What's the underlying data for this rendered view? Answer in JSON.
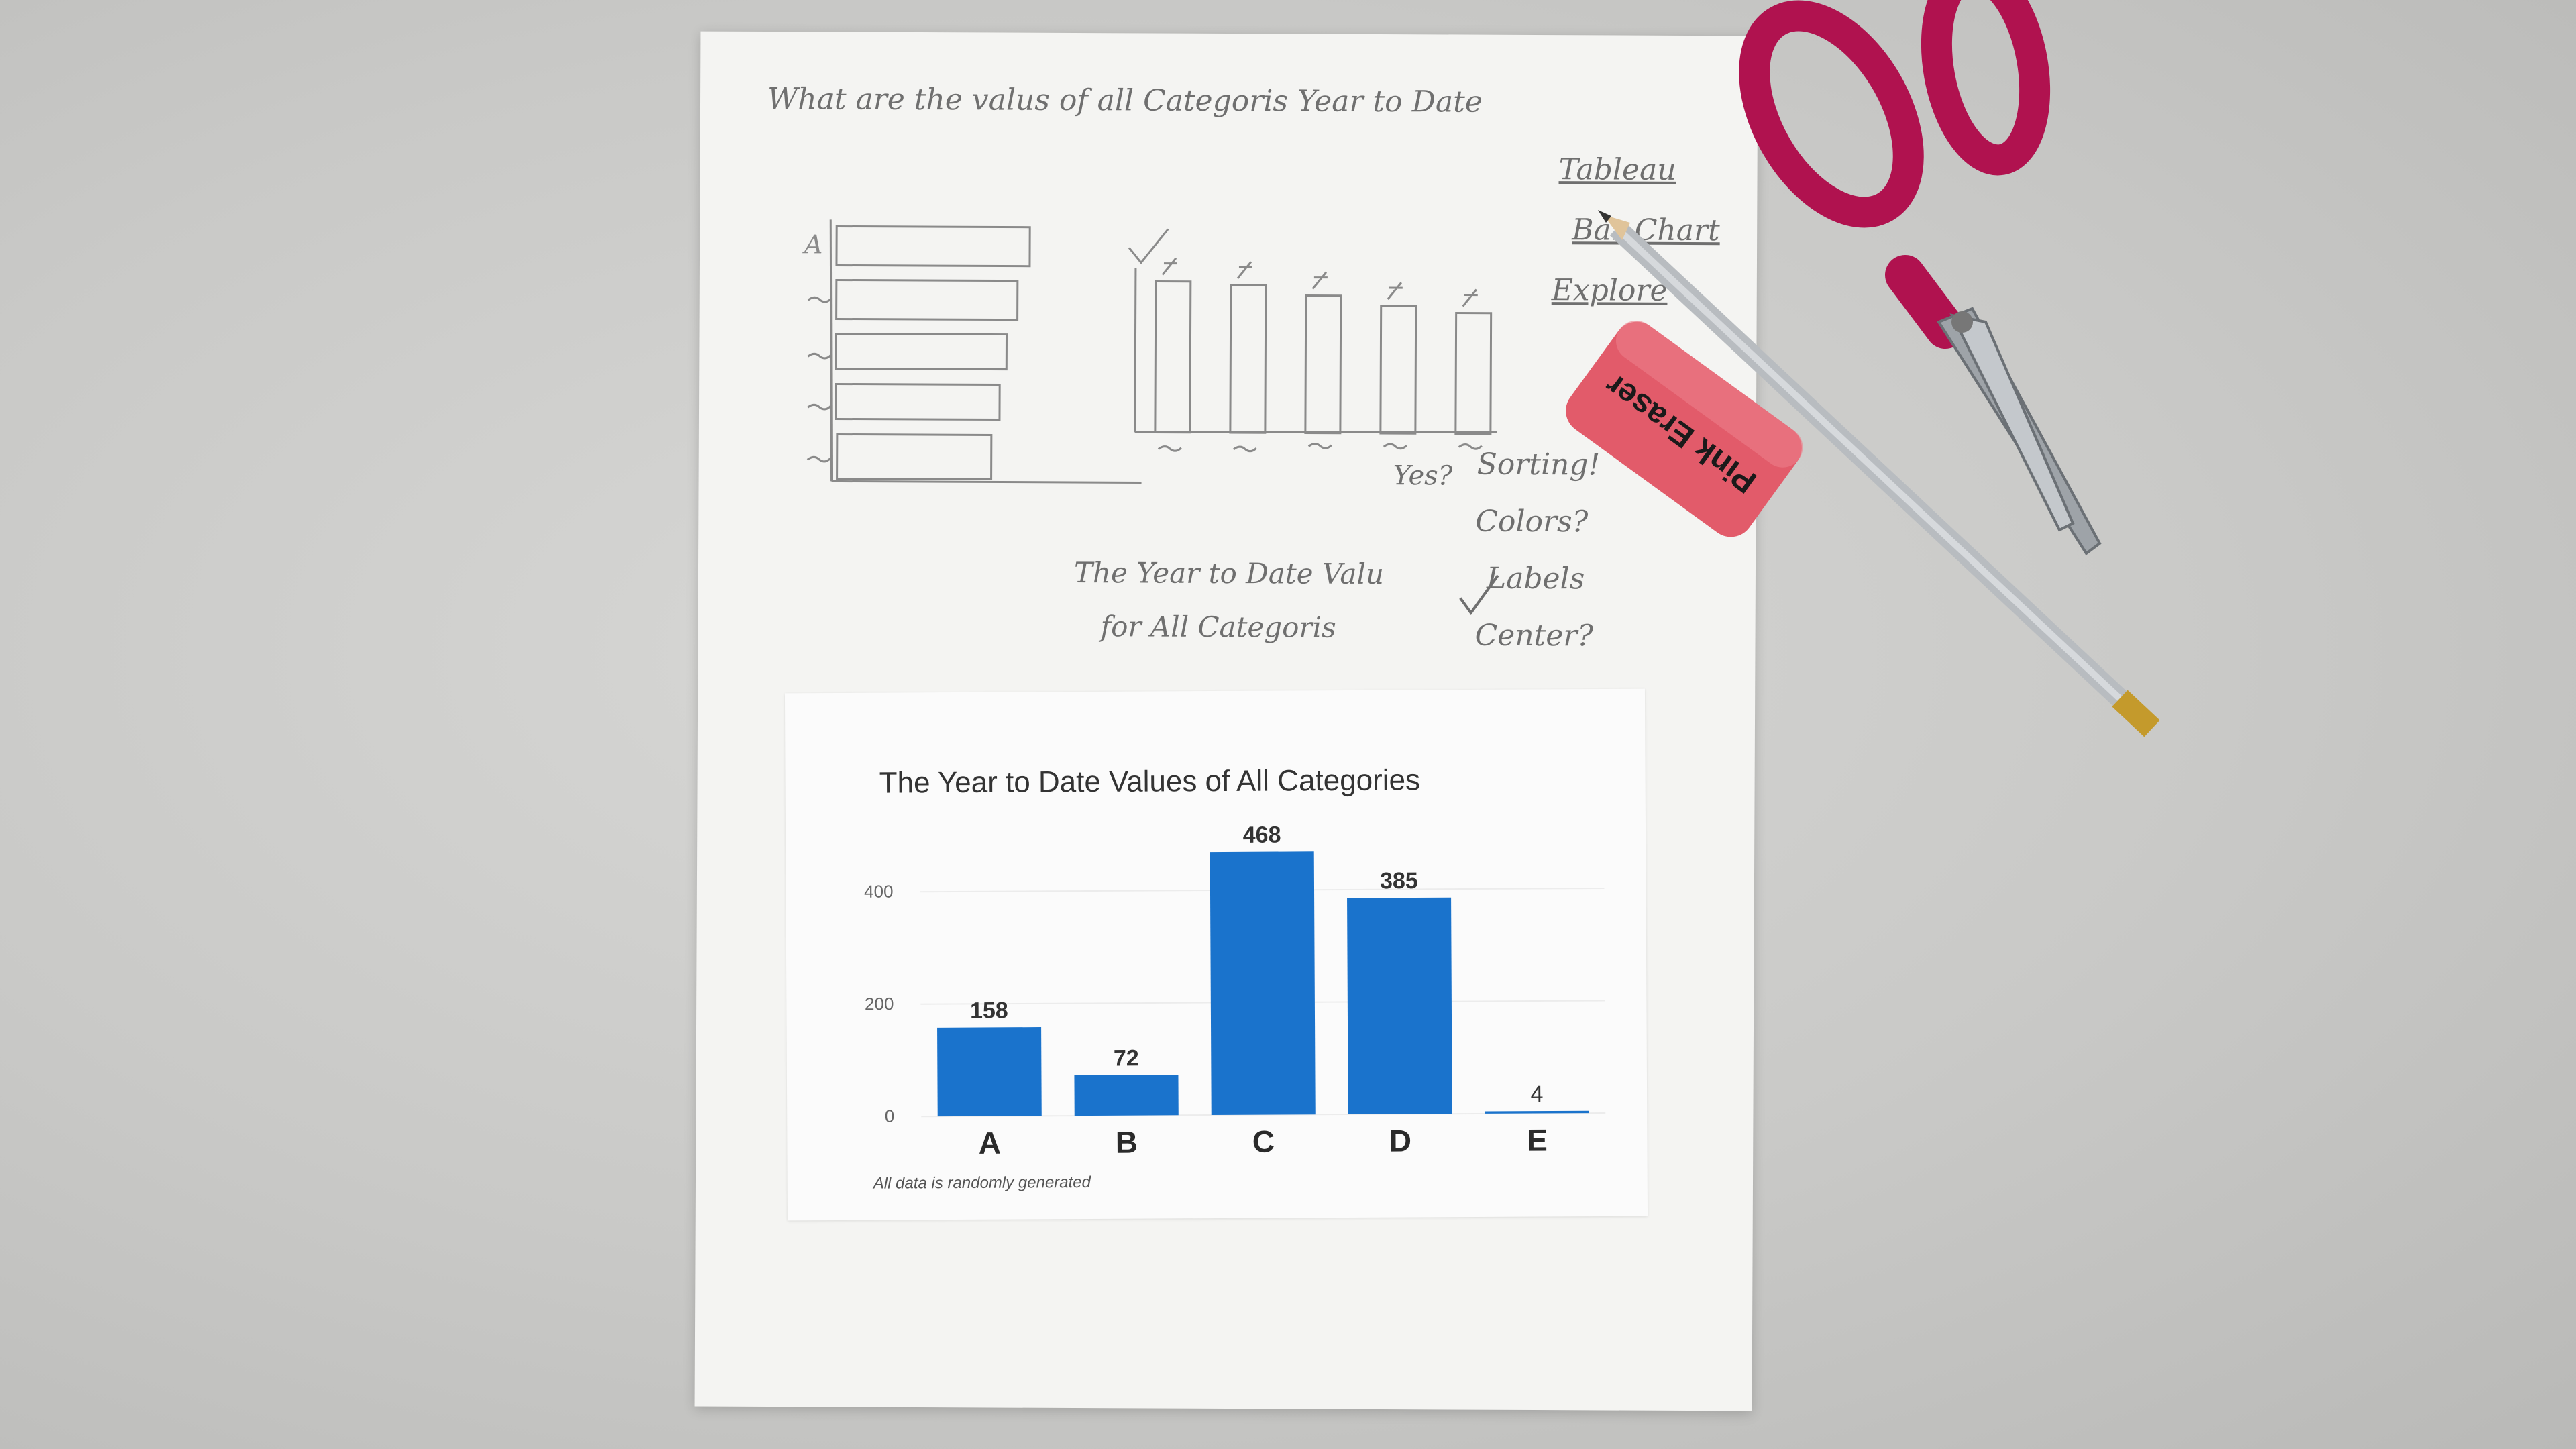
{
  "handwriting": {
    "question": "What are the valus of all Categoris Year to Date",
    "options": [
      "Tableau",
      "Bar Chart",
      "Explore"
    ],
    "title_draft_line1": "The Year to Date Valu",
    "title_draft_line2": "for All Categoris",
    "yes": "Yes?",
    "checklist": [
      "Sorting!",
      "Colors?",
      "Labels",
      "Center?"
    ]
  },
  "eraser": {
    "label": "Pink Eraser"
  },
  "chart_data": {
    "type": "bar",
    "title": "The Year to Date Values of All Categories",
    "categories": [
      "A",
      "B",
      "C",
      "D",
      "E"
    ],
    "values": [
      158,
      72,
      468,
      385,
      4
    ],
    "data_labels": [
      "158",
      "72",
      "468",
      "385",
      "4"
    ],
    "yticks": [
      "0",
      "200",
      "400"
    ],
    "ylim": [
      0,
      480
    ],
    "bar_color": "#1a73cc",
    "grid": true,
    "xlabel": "",
    "ylabel": "",
    "footnote": "All data is randomly generated"
  },
  "colors": {
    "bar": "#1a73cc",
    "scissors": "#b0124f",
    "eraser": "#e25b6a",
    "pencil": "#b8bcc0"
  }
}
